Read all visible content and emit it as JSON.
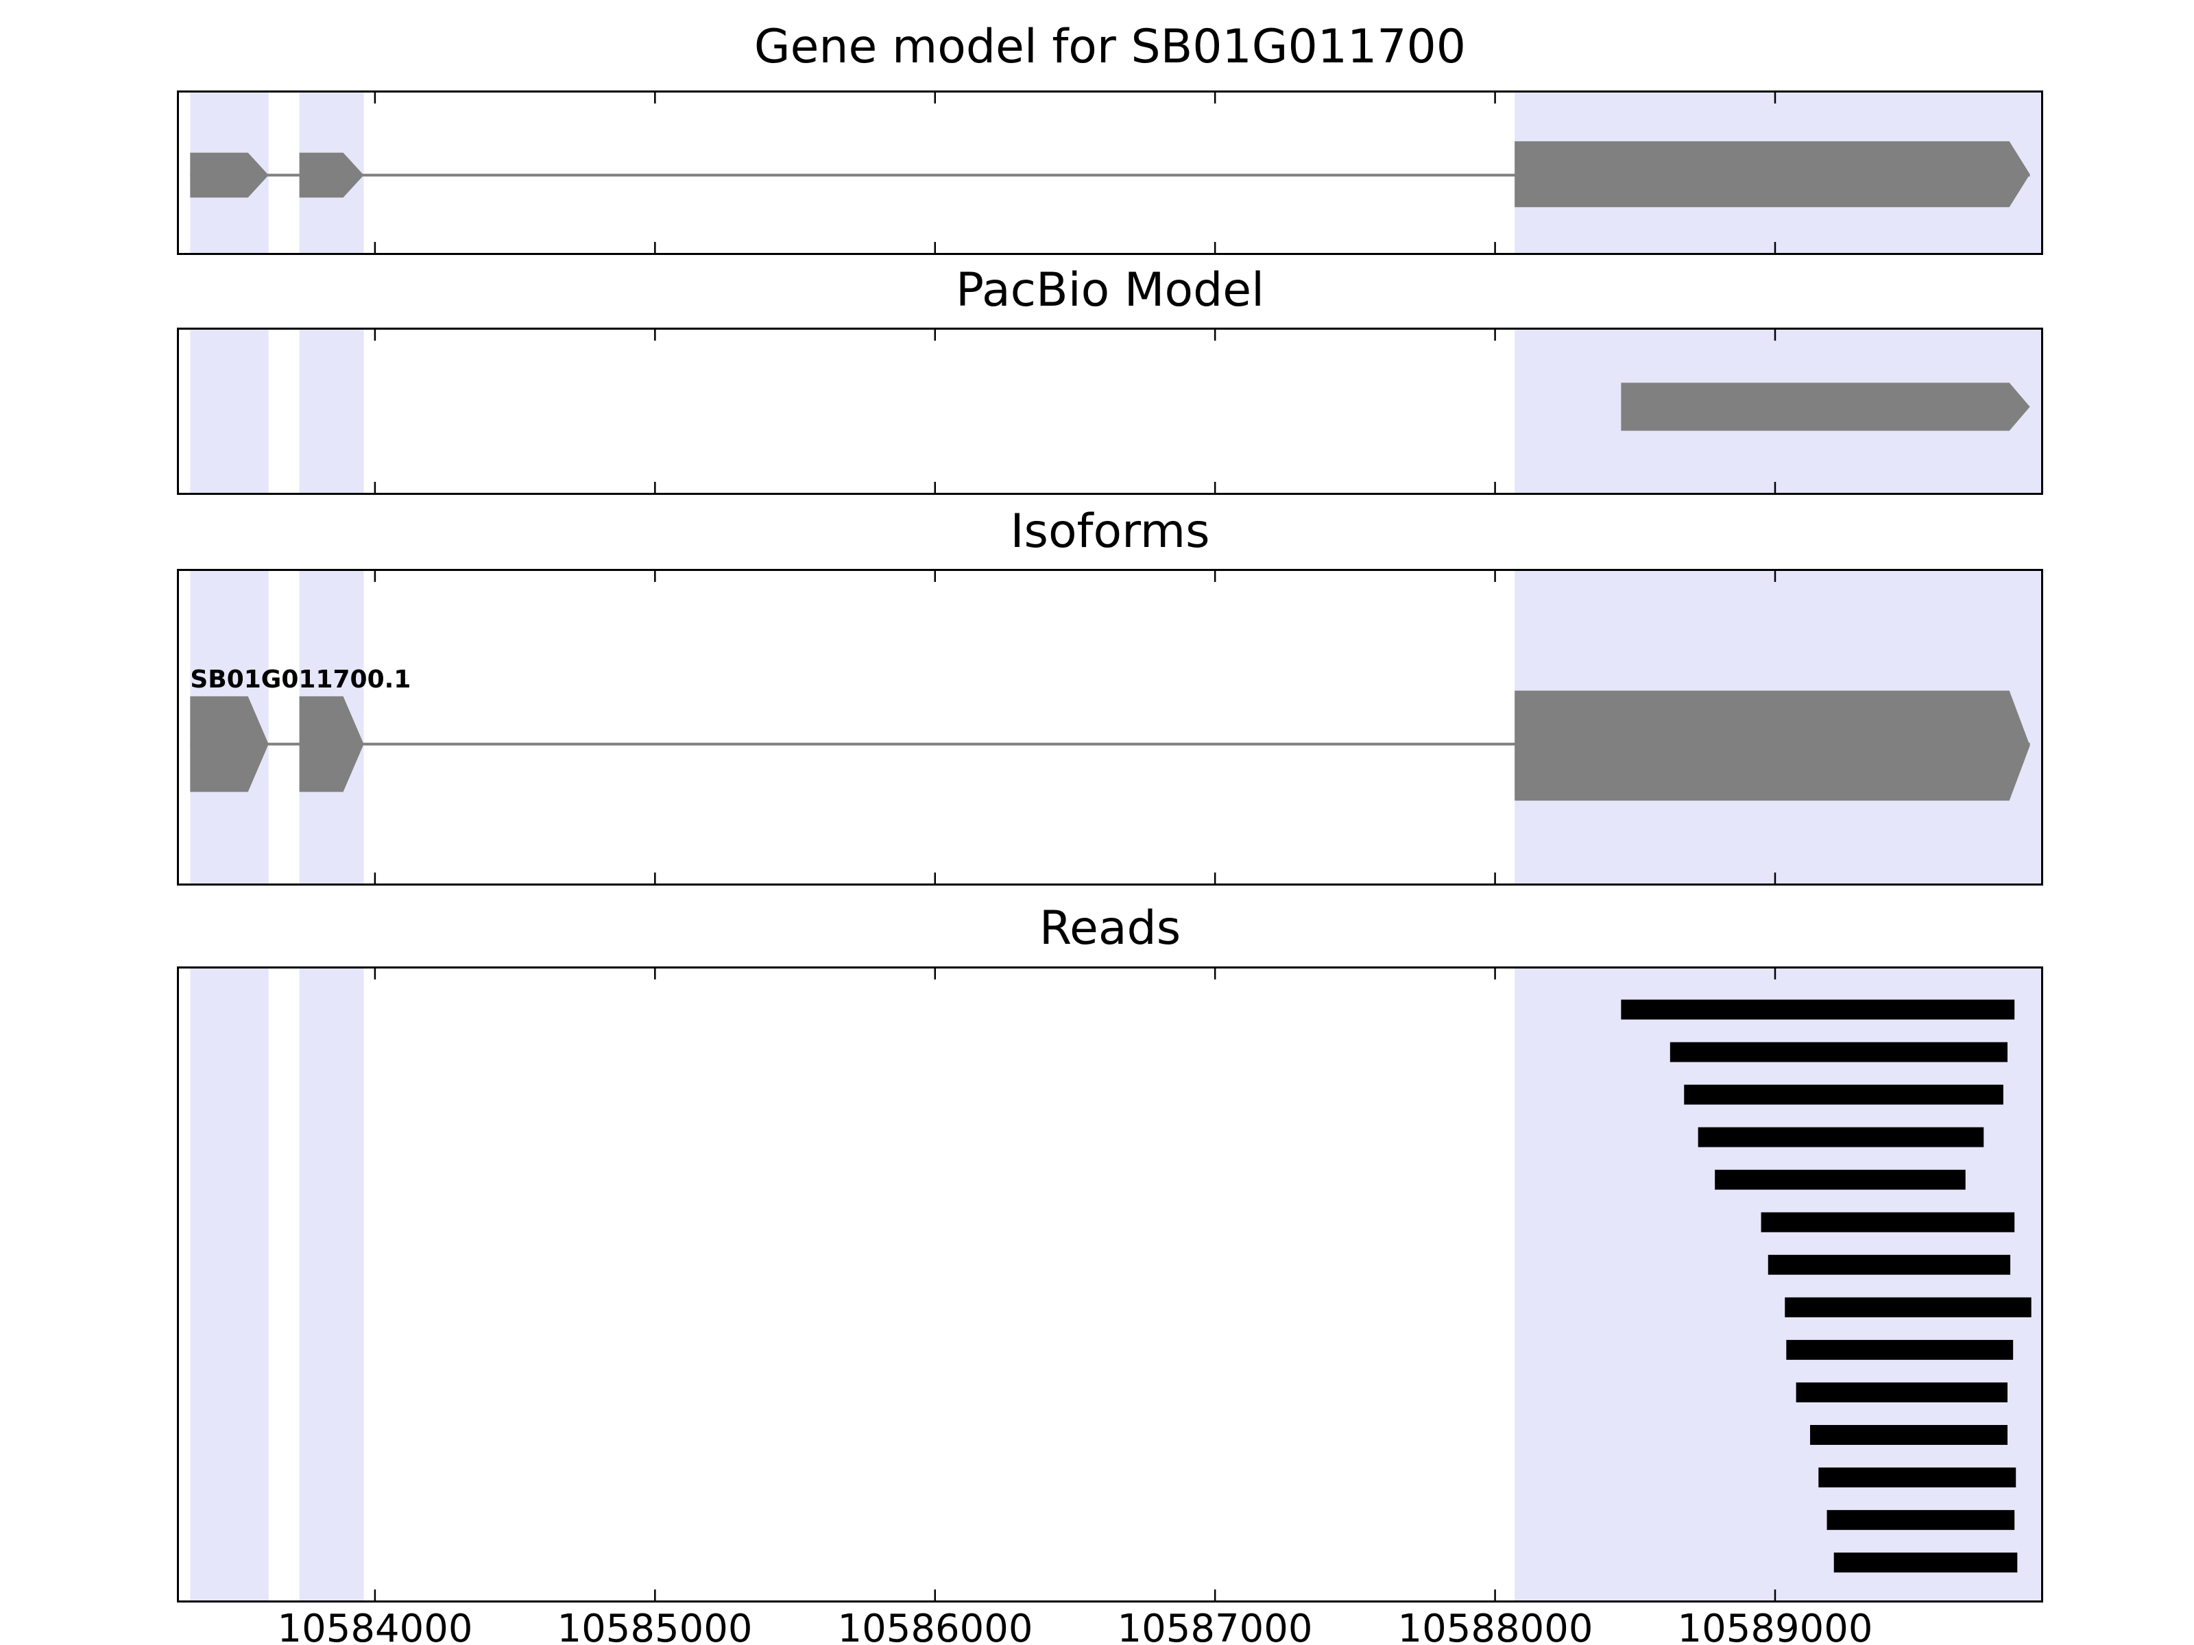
{
  "chart_data": {
    "type": "genome-track-plot",
    "grid": false,
    "legend": false,
    "x_axis": {
      "min": 10583300,
      "max": 10589950,
      "ticks": [
        10584000,
        10585000,
        10586000,
        10587000,
        10588000,
        10589000
      ],
      "tick_labels": [
        "10584000",
        "10585000",
        "10586000",
        "10587000",
        "10588000",
        "10589000"
      ]
    },
    "colors": {
      "highlight_band": "#e6e6fa",
      "feature_gray": "#808080",
      "read_black": "#000000",
      "frame": "#000000"
    },
    "highlight_regions": [
      {
        "start": 10583340,
        "end": 10583620
      },
      {
        "start": 10583730,
        "end": 10583960
      },
      {
        "start": 10588070,
        "end": 10589950
      }
    ],
    "tracks": [
      {
        "id": "gene_model",
        "title": "Gene model for SB01G011700",
        "intron_line": {
          "start": 10583340,
          "end": 10589910
        },
        "features": [
          {
            "kind": "exon_arrow",
            "size": "small",
            "start": 10583340,
            "end": 10583620
          },
          {
            "kind": "exon_arrow",
            "size": "small",
            "start": 10583730,
            "end": 10583960
          },
          {
            "kind": "exon_arrow",
            "size": "large",
            "start": 10588070,
            "end": 10589910
          }
        ]
      },
      {
        "id": "pacbio_model",
        "title": "PacBio Model",
        "features": [
          {
            "kind": "exon_arrow",
            "size": "small",
            "start": 10588450,
            "end": 10589910
          }
        ]
      },
      {
        "id": "isoforms",
        "title": "Isoforms",
        "isoform_label": "SB01G011700.1",
        "intron_line": {
          "start": 10583340,
          "end": 10589910
        },
        "features": [
          {
            "kind": "exon_arrow",
            "size": "small",
            "start": 10583340,
            "end": 10583620
          },
          {
            "kind": "exon_arrow",
            "size": "small",
            "start": 10583730,
            "end": 10583960
          },
          {
            "kind": "exon_arrow",
            "size": "large",
            "start": 10588070,
            "end": 10589910
          }
        ]
      },
      {
        "id": "reads",
        "title": "Reads",
        "reads": [
          {
            "start": 10588450,
            "end": 10589855
          },
          {
            "start": 10588625,
            "end": 10589830
          },
          {
            "start": 10588675,
            "end": 10589815
          },
          {
            "start": 10588725,
            "end": 10589745
          },
          {
            "start": 10588785,
            "end": 10589680
          },
          {
            "start": 10588950,
            "end": 10589855
          },
          {
            "start": 10588975,
            "end": 10589840
          },
          {
            "start": 10589035,
            "end": 10589915
          },
          {
            "start": 10589040,
            "end": 10589850
          },
          {
            "start": 10589075,
            "end": 10589830
          },
          {
            "start": 10589125,
            "end": 10589830
          },
          {
            "start": 10589155,
            "end": 10589860
          },
          {
            "start": 10589185,
            "end": 10589855
          },
          {
            "start": 10589210,
            "end": 10589865
          }
        ]
      }
    ]
  }
}
